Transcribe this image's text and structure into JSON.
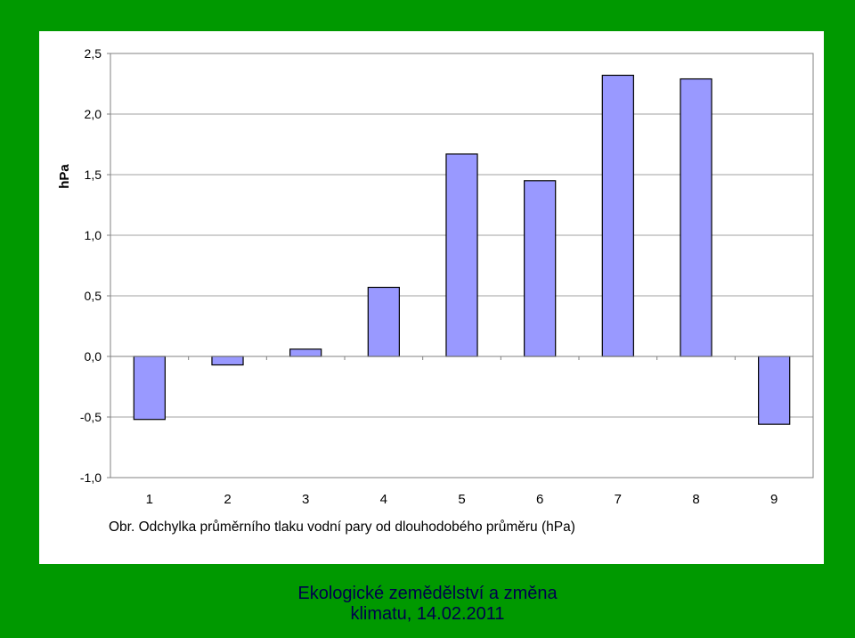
{
  "slide": {
    "background_color": "#009900",
    "panel_color": "#ffffff",
    "caption": "Obr. Odchylka průměrního tlaku vodní pary od dlouhodobého průměru (hPa)",
    "footer_line1": "Ekologické zemědělství a změna",
    "footer_line2": "klimatu, 14.02.2011",
    "footer_color": "#00004d"
  },
  "chart_data": {
    "type": "bar",
    "categories": [
      "1",
      "2",
      "3",
      "4",
      "5",
      "6",
      "7",
      "8",
      "9"
    ],
    "values": [
      -0.52,
      -0.07,
      0.06,
      0.57,
      1.67,
      1.45,
      2.32,
      2.29,
      -0.56
    ],
    "ylabel": "hPa",
    "ylim": [
      -1.0,
      2.5
    ],
    "yticks": [
      -1.0,
      -0.5,
      0.0,
      0.5,
      1.0,
      1.5,
      2.0,
      2.5
    ],
    "ytick_labels": [
      "-1,0",
      "-0,5",
      "0,0",
      "0,5",
      "1,0",
      "1,5",
      "2,0",
      "2,5"
    ],
    "bar_color": "#9999ff",
    "bar_edge_color": "#000000",
    "grid": true,
    "legend": false
  }
}
